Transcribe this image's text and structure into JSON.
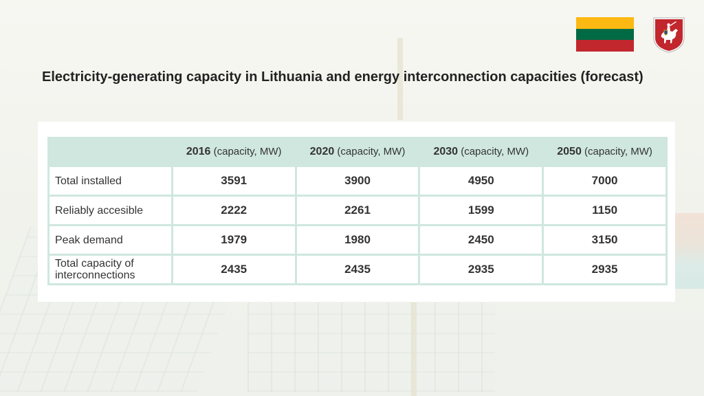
{
  "slide": {
    "title": "Electricity-generating capacity in Lithuania and energy interconnection capacities (forecast)"
  },
  "flag": {
    "colors": [
      "#fdb913",
      "#006a44",
      "#c1272d"
    ]
  },
  "coat_of_arms": {
    "icon": "lithuania-coat-of-arms-icon",
    "colors": [
      "#c1272d",
      "#ffffff",
      "#f2c100"
    ]
  },
  "table": {
    "header_color": "#cfe7df",
    "unit": "(capacity, MW)",
    "years": [
      "2016",
      "2020",
      "2030",
      "2050"
    ],
    "rows": [
      {
        "label": "Total installed",
        "values": [
          "3591",
          "3900",
          "4950",
          "7000"
        ]
      },
      {
        "label": "Reliably accesible",
        "values": [
          "2222",
          "2261",
          "1599",
          "1150"
        ]
      },
      {
        "label": "Peak demand",
        "values": [
          "1979",
          "1980",
          "2450",
          "3150"
        ]
      },
      {
        "label": "Total capacity of interconnections",
        "values": [
          "2435",
          "2435",
          "2935",
          "2935"
        ]
      }
    ]
  }
}
